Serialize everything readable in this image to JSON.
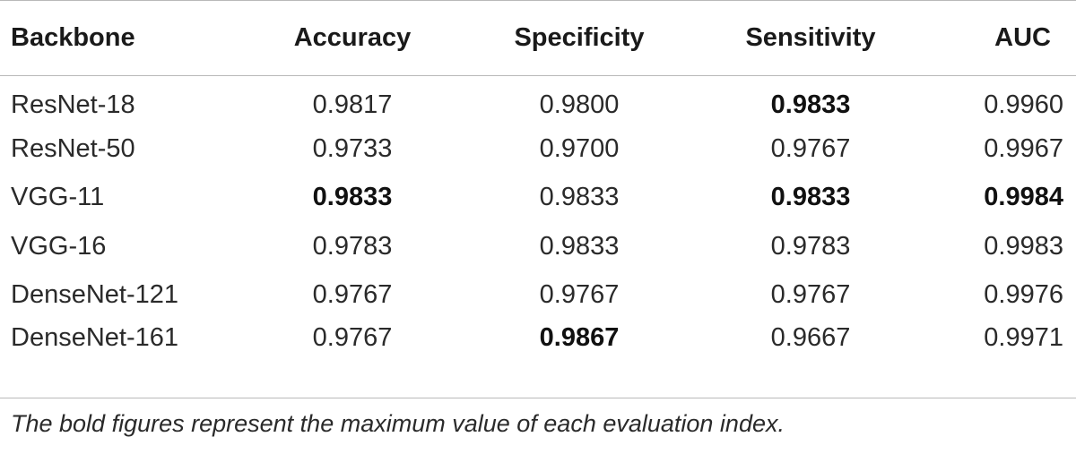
{
  "table": {
    "headers": [
      "Backbone",
      "Accuracy",
      "Specificity",
      "Sensitivity",
      "AUC"
    ],
    "rows": [
      {
        "cells": [
          "ResNet-18",
          "0.9817",
          "0.9800",
          "0.9833",
          "0.9960"
        ],
        "bold": [
          false,
          false,
          false,
          true,
          false
        ]
      },
      {
        "cells": [
          "ResNet-50",
          "0.9733",
          "0.9700",
          "0.9767",
          "0.9967"
        ],
        "bold": [
          false,
          false,
          false,
          false,
          false
        ]
      },
      {
        "cells": [
          "VGG-11",
          "0.9833",
          "0.9833",
          "0.9833",
          "0.9984"
        ],
        "bold": [
          false,
          true,
          false,
          true,
          true
        ]
      },
      {
        "cells": [
          "VGG-16",
          "0.9783",
          "0.9833",
          "0.9783",
          "0.9983"
        ],
        "bold": [
          false,
          false,
          false,
          false,
          false
        ]
      },
      {
        "cells": [
          "DenseNet-121",
          "0.9767",
          "0.9767",
          "0.9767",
          "0.9976"
        ],
        "bold": [
          false,
          false,
          false,
          false,
          false
        ]
      },
      {
        "cells": [
          "DenseNet-161",
          "0.9767",
          "0.9867",
          "0.9667",
          "0.9971"
        ],
        "bold": [
          false,
          false,
          true,
          false,
          false
        ]
      }
    ]
  },
  "footnote": "The bold figures represent the maximum value of each evaluation index."
}
